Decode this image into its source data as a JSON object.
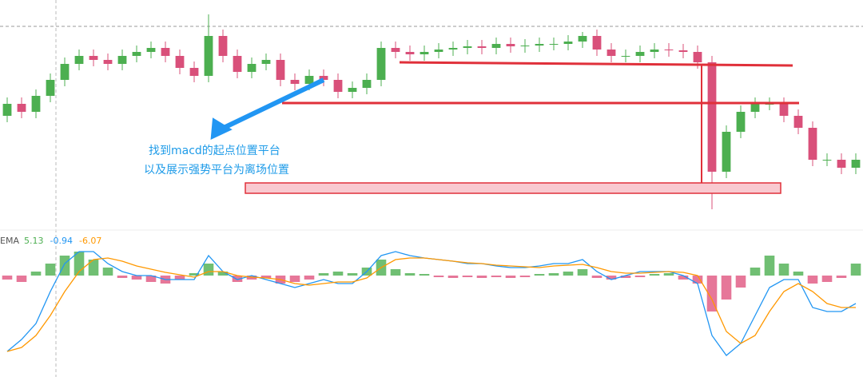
{
  "chart_data": [
    {
      "type": "candlestick",
      "ylim": [
        0,
        280
      ],
      "up_color": "#4caf50",
      "down_color": "#d9507a",
      "open": [
        135,
        150,
        140,
        160,
        180,
        200,
        210,
        205,
        200,
        210,
        215,
        220,
        210,
        195,
        185,
        235,
        210,
        190,
        200,
        205,
        180,
        175,
        185,
        180,
        165,
        170,
        180,
        220,
        215,
        212,
        215,
        218,
        220,
        222,
        220,
        225,
        222,
        223,
        225,
        225,
        228,
        235,
        218,
        210,
        210,
        215,
        218,
        217,
        215,
        202,
        65,
        115,
        140,
        150,
        150,
        135,
        120,
        80,
        80,
        70
      ],
      "high": [
        158,
        158,
        168,
        188,
        208,
        218,
        218,
        213,
        218,
        223,
        228,
        228,
        218,
        203,
        262,
        243,
        218,
        208,
        213,
        213,
        188,
        193,
        193,
        188,
        178,
        188,
        228,
        228,
        223,
        223,
        226,
        228,
        230,
        230,
        233,
        233,
        231,
        233,
        233,
        236,
        240,
        243,
        226,
        218,
        223,
        226,
        226,
        225,
        223,
        210,
        123,
        148,
        158,
        158,
        158,
        143,
        128,
        88,
        88,
        88
      ],
      "low": [
        127,
        132,
        132,
        152,
        172,
        192,
        197,
        192,
        192,
        202,
        207,
        202,
        187,
        177,
        177,
        202,
        182,
        182,
        192,
        172,
        167,
        167,
        172,
        157,
        157,
        162,
        172,
        207,
        204,
        204,
        207,
        210,
        212,
        212,
        212,
        214,
        214,
        215,
        217,
        217,
        220,
        210,
        202,
        202,
        202,
        207,
        209,
        207,
        194,
        18,
        57,
        107,
        132,
        142,
        127,
        112,
        72,
        72,
        62,
        62
      ],
      "close": [
        150,
        140,
        160,
        180,
        200,
        210,
        205,
        200,
        210,
        215,
        220,
        210,
        195,
        185,
        235,
        210,
        190,
        200,
        205,
        180,
        175,
        185,
        180,
        165,
        170,
        180,
        220,
        215,
        212,
        215,
        218,
        220,
        222,
        220,
        225,
        222,
        223,
        225,
        225,
        228,
        235,
        218,
        210,
        210,
        215,
        218,
        217,
        215,
        202,
        65,
        115,
        140,
        150,
        150,
        135,
        120,
        80,
        80,
        70,
        80
      ],
      "annotations": [
        "找到macd的起点位置平台",
        "以及展示强势平台为离场位置"
      ]
    },
    {
      "type": "macd",
      "title": "EMA",
      "legend_values": [
        {
          "value": 5.13,
          "color": "#4caf50"
        },
        {
          "value": -0.94,
          "color": "#2196f3"
        },
        {
          "value": -6.07,
          "color": "#ff9800"
        }
      ],
      "ylim": [
        -115,
        45
      ],
      "histogram": {
        "up_color": "#4caf50",
        "down_color": "#e0557f",
        "values": [
          -5,
          -8,
          5,
          15,
          25,
          30,
          20,
          10,
          -3,
          -5,
          -8,
          -10,
          -5,
          3,
          15,
          5,
          -8,
          -5,
          -3,
          -10,
          -8,
          -5,
          3,
          5,
          3,
          10,
          20,
          8,
          3,
          2,
          -2,
          -3,
          -2,
          -3,
          -2,
          -3,
          -2,
          2,
          3,
          5,
          8,
          -3,
          -5,
          -3,
          -2,
          2,
          3,
          -5,
          -10,
          -45,
          -30,
          -15,
          10,
          25,
          15,
          5,
          -10,
          -8,
          -3,
          15
        ]
      },
      "series": [
        {
          "color": "#2196f3",
          "values": [
            -95,
            -80,
            -60,
            -20,
            15,
            30,
            30,
            15,
            5,
            0,
            0,
            -5,
            -5,
            -5,
            25,
            5,
            -5,
            0,
            -5,
            -10,
            -15,
            -10,
            -5,
            -10,
            -10,
            5,
            25,
            30,
            25,
            22,
            20,
            18,
            15,
            15,
            12,
            10,
            10,
            12,
            15,
            15,
            20,
            5,
            -5,
            0,
            5,
            5,
            5,
            0,
            -10,
            -75,
            -100,
            -85,
            -50,
            -15,
            -5,
            -5,
            -40,
            -45,
            -45,
            -35
          ]
        },
        {
          "color": "#ff9800",
          "values": [
            -95,
            -90,
            -75,
            -50,
            -20,
            5,
            20,
            22,
            18,
            12,
            8,
            4,
            1,
            -2,
            5,
            5,
            0,
            -2,
            -3,
            -5,
            -10,
            -12,
            -10,
            -8,
            -8,
            -3,
            10,
            20,
            22,
            22,
            20,
            18,
            16,
            15,
            13,
            12,
            11,
            10,
            12,
            13,
            14,
            10,
            5,
            3,
            3,
            4,
            5,
            4,
            0,
            -30,
            -70,
            -85,
            -75,
            -45,
            -20,
            -10,
            -20,
            -35,
            -40,
            -40
          ]
        }
      ]
    }
  ]
}
